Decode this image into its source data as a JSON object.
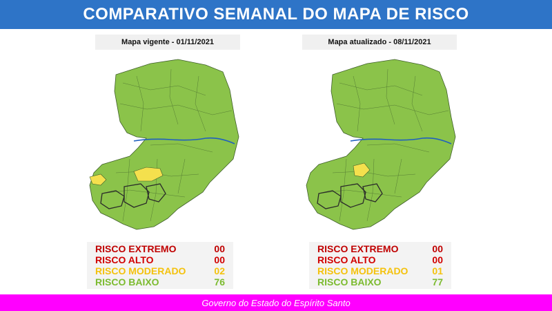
{
  "header": {
    "title": "COMPARATIVO SEMANAL DO MAPA DE RISCO"
  },
  "colors": {
    "header_bg": "#2e74c7",
    "footer_bg": "#ff00ff",
    "risk_low": "#8bc34a",
    "risk_moderate": "#f4e04d",
    "risk_high": "#d10000",
    "risk_extreme": "#c00000",
    "river": "#1f5fbf",
    "border": "#3e5e2a"
  },
  "panels": [
    {
      "caption": "Mapa vigente - 01/11/2021",
      "legend": [
        {
          "label": "RISCO EXTREMO",
          "value": "00",
          "color": "#c00000"
        },
        {
          "label": "RISCO ALTO",
          "value": "00",
          "color": "#d10000"
        },
        {
          "label": "RISCO MODERADO",
          "value": "02",
          "color": "#f4c20d"
        },
        {
          "label": "RISCO BAIXO",
          "value": "76",
          "color": "#7cbb2f"
        }
      ],
      "moderate_areas": [
        "central-west",
        "southwest-border"
      ]
    },
    {
      "caption": "Mapa atualizado - 08/11/2021",
      "legend": [
        {
          "label": "RISCO EXTREMO",
          "value": "00",
          "color": "#c00000"
        },
        {
          "label": "RISCO ALTO",
          "value": "00",
          "color": "#d10000"
        },
        {
          "label": "RISCO MODERADO",
          "value": "01",
          "color": "#f4c20d"
        },
        {
          "label": "RISCO BAIXO",
          "value": "77",
          "color": "#7cbb2f"
        }
      ],
      "moderate_areas": [
        "central-west"
      ]
    }
  ],
  "footer": {
    "text": "Governo do Estado do Espírito Santo"
  }
}
